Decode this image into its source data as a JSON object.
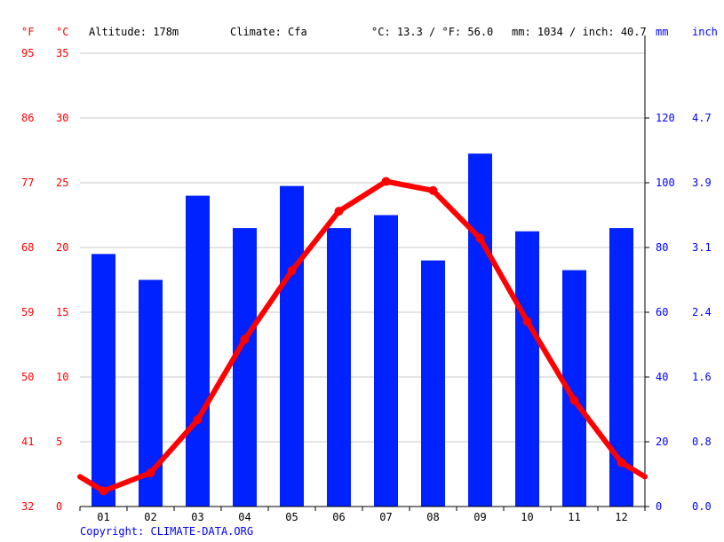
{
  "header": {
    "unit_f": "°F",
    "unit_c": "°C",
    "altitude": "Altitude: 178m",
    "climate": "Climate: Cfa",
    "temp_avg": "°C: 13.3 / °F: 56.0",
    "precip_total": "mm: 1034 / inch: 40.7",
    "unit_mm": "mm",
    "unit_inch": "inch"
  },
  "copyright": "Copyright: CLIMATE-DATA.ORG",
  "colors": {
    "temperature": "#ff0000",
    "precipitation": "#0022ff",
    "grid": "#c8c8c8",
    "axis": "#000000",
    "label_temp": "#ff0000",
    "label_precip": "#0000ff"
  },
  "chart_data": {
    "type": "bar",
    "categories": [
      "01",
      "02",
      "03",
      "04",
      "05",
      "06",
      "07",
      "08",
      "09",
      "10",
      "11",
      "12"
    ],
    "series": [
      {
        "kind": "bar",
        "axis": "right",
        "values": [
          78,
          70,
          96,
          86,
          99,
          86,
          90,
          76,
          109,
          85,
          73,
          86
        ]
      },
      {
        "kind": "line",
        "axis": "left",
        "values": [
          1.2,
          2.6,
          6.7,
          12.9,
          18.2,
          22.8,
          25.1,
          24.4,
          20.7,
          14.3,
          8.2,
          3.4
        ]
      }
    ],
    "ylim_c": [
      0,
      35
    ],
    "ylim_mm": [
      0,
      140
    ],
    "yticks_c": [
      "0",
      "5",
      "10",
      "15",
      "20",
      "25",
      "30",
      "35"
    ],
    "yticks_f": [
      "32",
      "41",
      "50",
      "59",
      "68",
      "77",
      "86",
      "95"
    ],
    "yticks_mm": [
      "0",
      "20",
      "40",
      "60",
      "80",
      "100",
      "120"
    ],
    "yticks_inch": [
      "0.0",
      "0.8",
      "1.6",
      "2.4",
      "3.1",
      "3.9",
      "4.7"
    ],
    "grid": true
  }
}
